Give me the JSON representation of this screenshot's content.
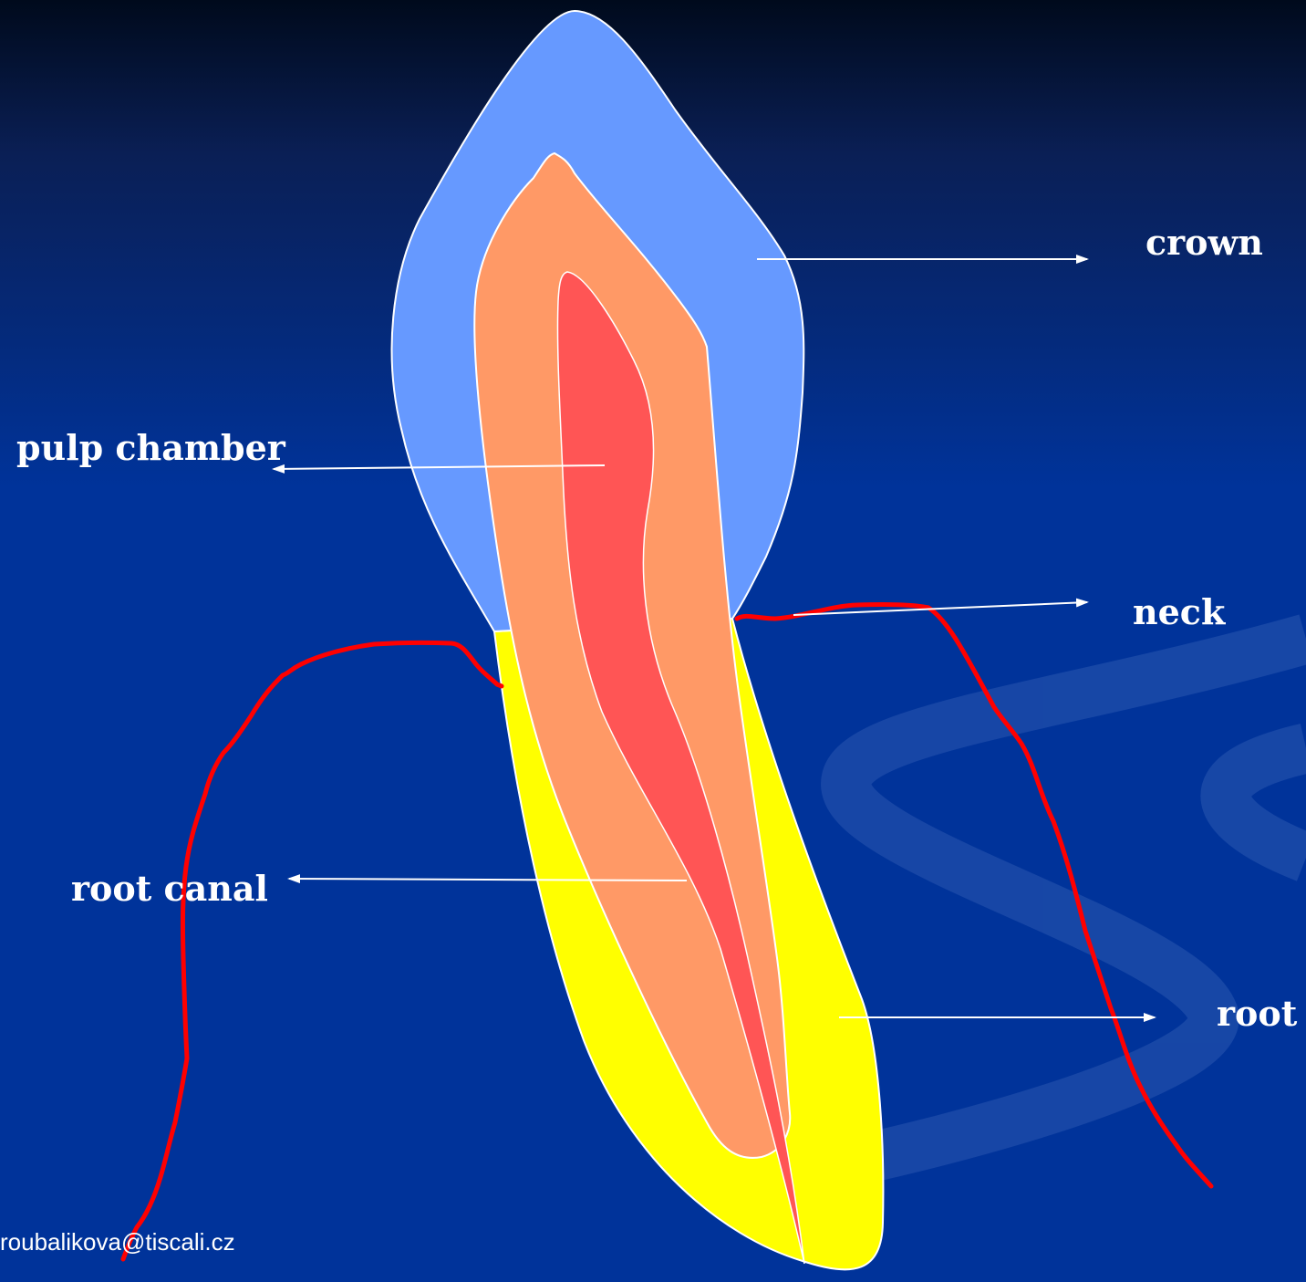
{
  "labels": {
    "crown": "crown",
    "pulp_chamber": "pulp chamber",
    "neck": "neck",
    "root_canal": "root canal",
    "root": "root"
  },
  "footer": {
    "email": "roubalikova@tiscali.cz"
  },
  "colors": {
    "background": "#00339a",
    "enamel": "#6699ff",
    "dentin": "#ff9966",
    "pulp": "#ff5555",
    "cementum": "#ffff00",
    "gum_line": "#ff0000",
    "outline": "#ffffff"
  }
}
